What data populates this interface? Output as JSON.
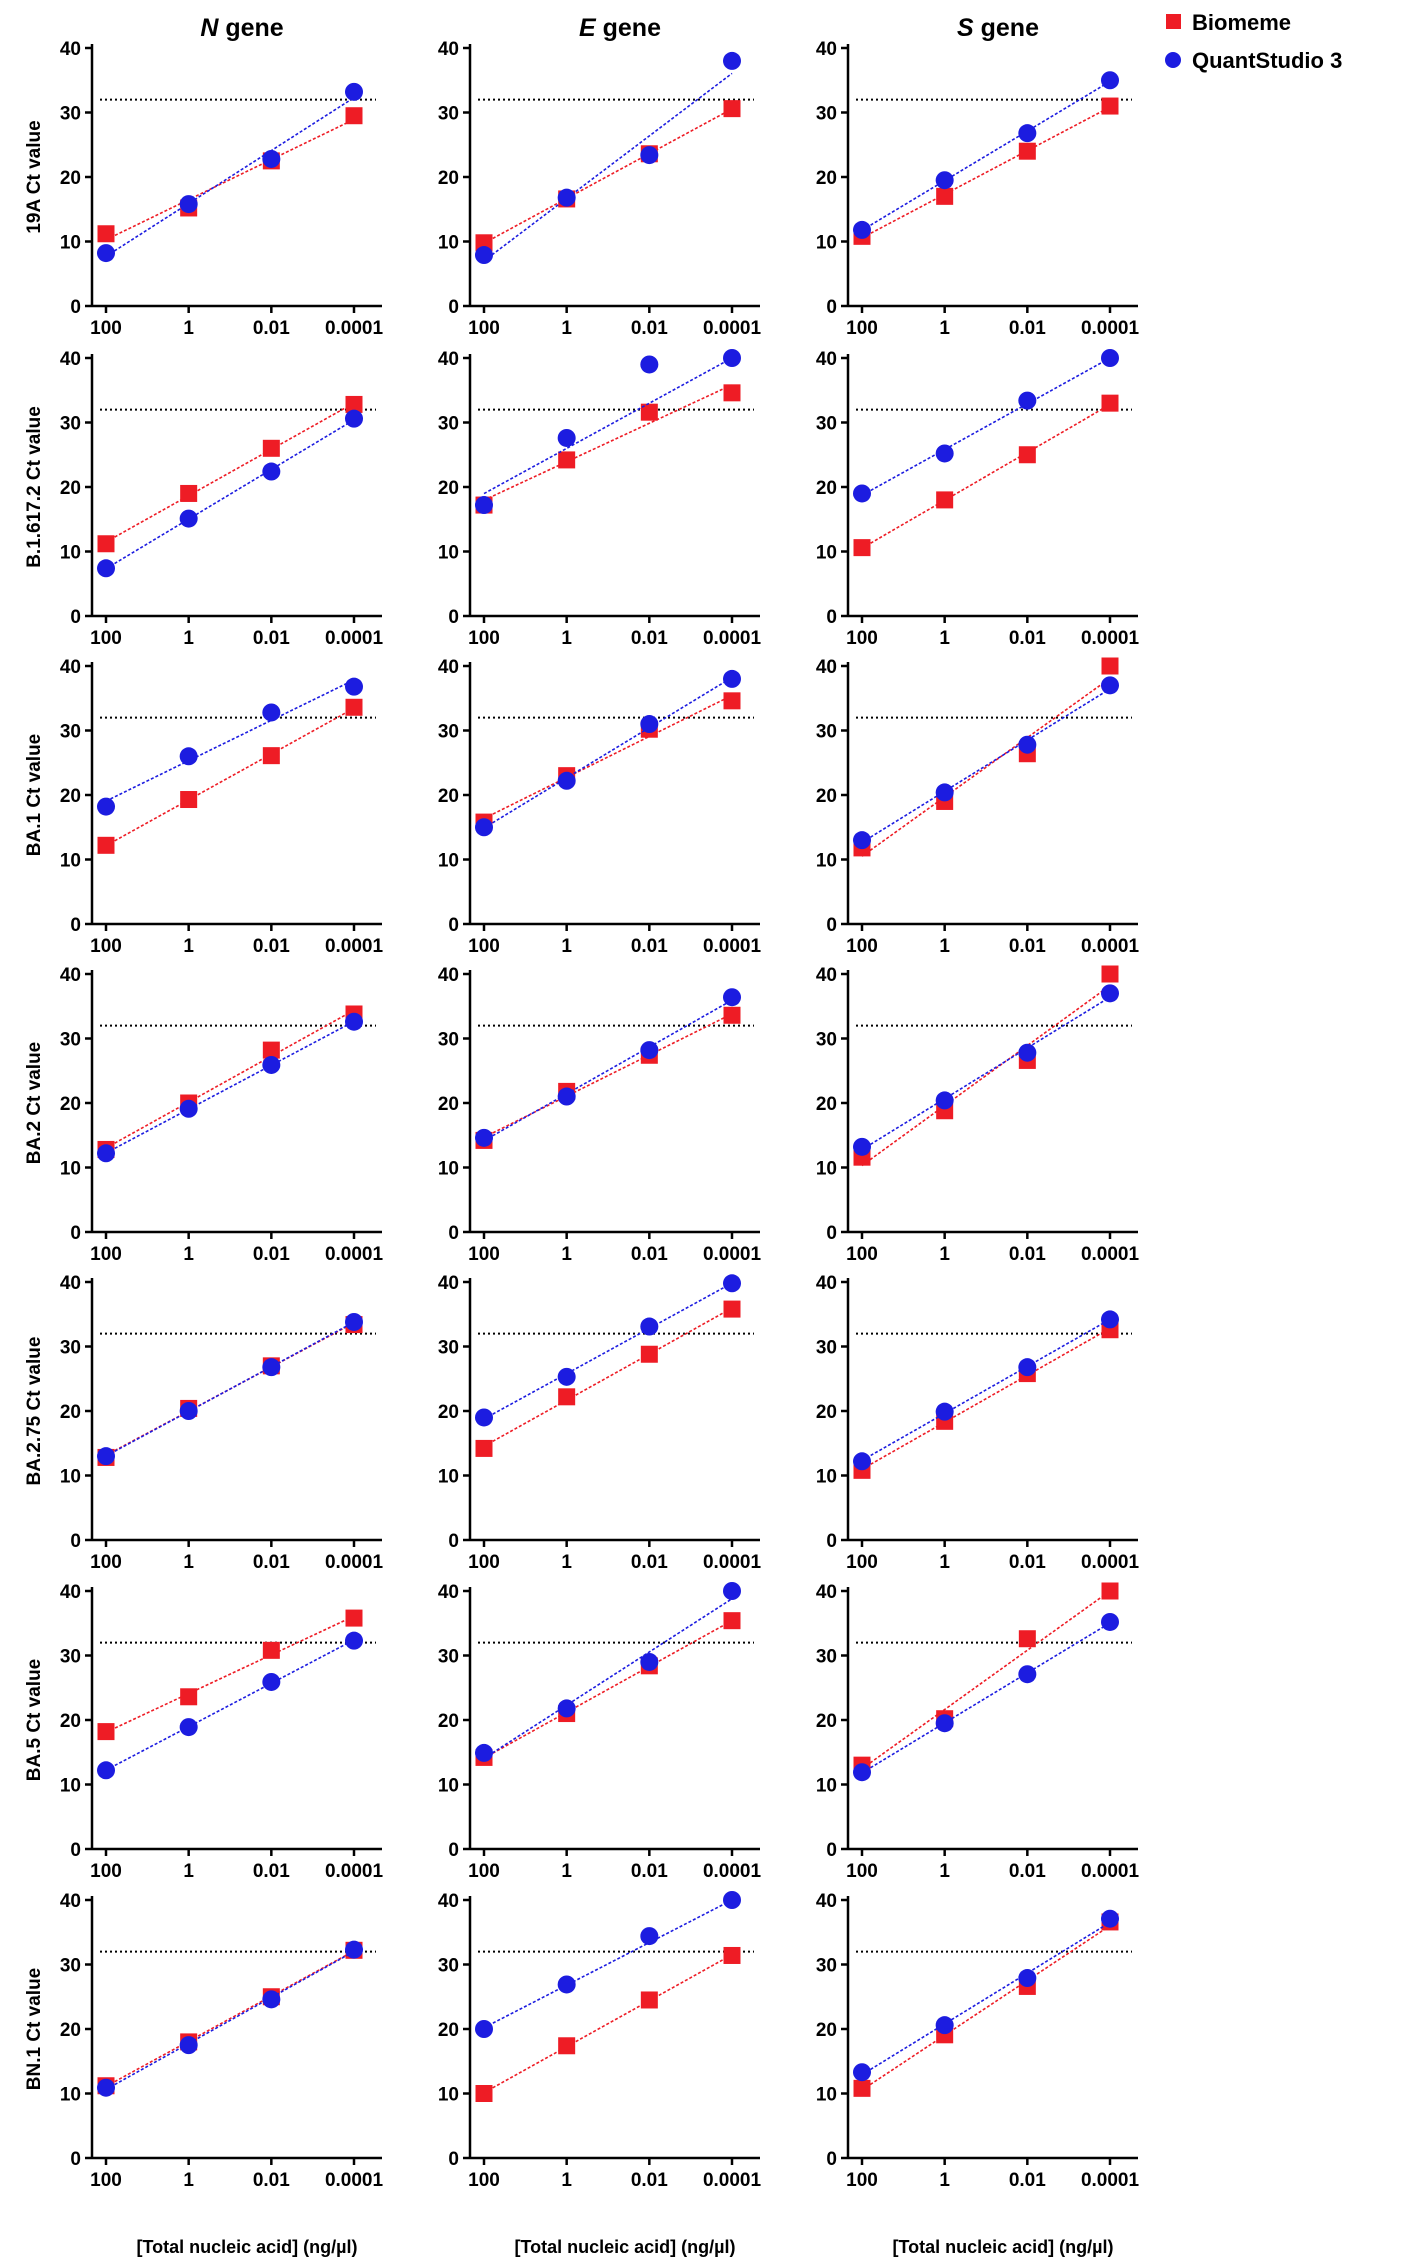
{
  "figure": {
    "column_titles": [
      {
        "italic": "N",
        "rest": " gene"
      },
      {
        "italic": "E",
        "rest": " gene"
      },
      {
        "italic": "S",
        "rest": " gene"
      }
    ],
    "row_labels": [
      "19A Ct value",
      "B.1.617.2 Ct value",
      "BA.1 Ct value",
      "BA.2 Ct value",
      "BA.2.75 Ct value",
      "BA.5 Ct value",
      "BN.1 Ct value"
    ],
    "x_axis_title": "[Total nucleic acid] (ng/µl)",
    "legend": [
      {
        "label": "Biomeme",
        "color": "#ee1c25",
        "marker": "square"
      },
      {
        "label": "QuantStudio 3",
        "color": "#1c1ce0",
        "marker": "circle"
      }
    ],
    "colors": {
      "biomeme": "#ee1c25",
      "quantstudio": "#1c1ce0",
      "threshold": "#000000"
    }
  },
  "chart_data": [
    {
      "type": "scatter",
      "row": "19A",
      "gene": "N gene",
      "x": [
        "100",
        "1",
        "0.01",
        "0.0001"
      ],
      "yticks": [
        0,
        10,
        20,
        30,
        40
      ],
      "ylim": [
        0,
        40
      ],
      "threshold": 32,
      "series": [
        {
          "name": "Biomeme",
          "values": [
            11.2,
            15.2,
            22.5,
            29.5
          ]
        },
        {
          "name": "QuantStudio 3",
          "values": [
            8.2,
            15.8,
            22.8,
            33.2
          ]
        }
      ]
    },
    {
      "type": "scatter",
      "row": "19A",
      "gene": "E gene",
      "x": [
        "100",
        "1",
        "0.01",
        "0.0001"
      ],
      "yticks": [
        0,
        10,
        20,
        30,
        40
      ],
      "ylim": [
        0,
        40
      ],
      "threshold": 32,
      "series": [
        {
          "name": "Biomeme",
          "values": [
            9.8,
            16.6,
            23.6,
            30.6
          ]
        },
        {
          "name": "QuantStudio 3",
          "values": [
            7.9,
            16.8,
            23.4,
            38.0
          ]
        }
      ]
    },
    {
      "type": "scatter",
      "row": "19A",
      "gene": "S gene",
      "x": [
        "100",
        "1",
        "0.01",
        "0.0001"
      ],
      "yticks": [
        0,
        10,
        20,
        30,
        40
      ],
      "ylim": [
        0,
        40
      ],
      "threshold": 32,
      "series": [
        {
          "name": "Biomeme",
          "values": [
            10.8,
            17.0,
            24.0,
            31.0
          ]
        },
        {
          "name": "QuantStudio 3",
          "values": [
            11.8,
            19.5,
            26.8,
            35.0
          ]
        }
      ]
    },
    {
      "type": "scatter",
      "row": "B.1.617.2",
      "gene": "N gene",
      "x": [
        "100",
        "1",
        "0.01",
        "0.0001"
      ],
      "yticks": [
        0,
        10,
        20,
        30,
        40
      ],
      "ylim": [
        0,
        40
      ],
      "threshold": 32,
      "series": [
        {
          "name": "Biomeme",
          "values": [
            11.2,
            19.0,
            26.0,
            32.8
          ]
        },
        {
          "name": "QuantStudio 3",
          "values": [
            7.4,
            15.1,
            22.4,
            30.6
          ]
        }
      ]
    },
    {
      "type": "scatter",
      "row": "B.1.617.2",
      "gene": "E gene",
      "x": [
        "100",
        "1",
        "0.01",
        "0.0001"
      ],
      "yticks": [
        0,
        10,
        20,
        30,
        40
      ],
      "ylim": [
        0,
        40
      ],
      "threshold": 32,
      "series": [
        {
          "name": "Biomeme",
          "values": [
            17.2,
            24.2,
            31.6,
            34.6
          ]
        },
        {
          "name": "QuantStudio 3",
          "values": [
            17.2,
            27.6,
            39.0,
            40.0
          ]
        }
      ]
    },
    {
      "type": "scatter",
      "row": "B.1.617.2",
      "gene": "S gene",
      "x": [
        "100",
        "1",
        "0.01",
        "0.0001"
      ],
      "yticks": [
        0,
        10,
        20,
        30,
        40
      ],
      "ylim": [
        0,
        40
      ],
      "threshold": 32,
      "series": [
        {
          "name": "Biomeme",
          "values": [
            10.6,
            18.0,
            25.0,
            33.0
          ]
        },
        {
          "name": "QuantStudio 3",
          "values": [
            19.0,
            25.2,
            33.4,
            40.0
          ]
        }
      ]
    },
    {
      "type": "scatter",
      "row": "BA.1",
      "gene": "N gene",
      "x": [
        "100",
        "1",
        "0.01",
        "0.0001"
      ],
      "yticks": [
        0,
        10,
        20,
        30,
        40
      ],
      "ylim": [
        0,
        40
      ],
      "threshold": 32,
      "series": [
        {
          "name": "Biomeme",
          "values": [
            12.2,
            19.3,
            26.1,
            33.6
          ]
        },
        {
          "name": "QuantStudio 3",
          "values": [
            18.2,
            26.0,
            32.8,
            36.8
          ]
        }
      ]
    },
    {
      "type": "scatter",
      "row": "BA.1",
      "gene": "E gene",
      "x": [
        "100",
        "1",
        "0.01",
        "0.0001"
      ],
      "yticks": [
        0,
        10,
        20,
        30,
        40
      ],
      "ylim": [
        0,
        40
      ],
      "threshold": 32,
      "series": [
        {
          "name": "Biomeme",
          "values": [
            15.8,
            23.0,
            30.2,
            34.6
          ]
        },
        {
          "name": "QuantStudio 3",
          "values": [
            15.0,
            22.2,
            31.0,
            38.0
          ]
        }
      ]
    },
    {
      "type": "scatter",
      "row": "BA.1",
      "gene": "S gene",
      "x": [
        "100",
        "1",
        "0.01",
        "0.0001"
      ],
      "yticks": [
        0,
        10,
        20,
        30,
        40
      ],
      "ylim": [
        0,
        40
      ],
      "threshold": 32,
      "series": [
        {
          "name": "Biomeme",
          "values": [
            11.8,
            19.0,
            26.4,
            40.0
          ]
        },
        {
          "name": "QuantStudio 3",
          "values": [
            13.0,
            20.4,
            27.8,
            37.0
          ]
        }
      ]
    },
    {
      "type": "scatter",
      "row": "BA.2",
      "gene": "N gene",
      "x": [
        "100",
        "1",
        "0.01",
        "0.0001"
      ],
      "yticks": [
        0,
        10,
        20,
        30,
        40
      ],
      "ylim": [
        0,
        40
      ],
      "threshold": 32,
      "series": [
        {
          "name": "Biomeme",
          "values": [
            12.8,
            20.0,
            28.2,
            33.8
          ]
        },
        {
          "name": "QuantStudio 3",
          "values": [
            12.2,
            19.1,
            25.9,
            32.6
          ]
        }
      ]
    },
    {
      "type": "scatter",
      "row": "BA.2",
      "gene": "E gene",
      "x": [
        "100",
        "1",
        "0.01",
        "0.0001"
      ],
      "yticks": [
        0,
        10,
        20,
        30,
        40
      ],
      "ylim": [
        0,
        40
      ],
      "threshold": 32,
      "series": [
        {
          "name": "Biomeme",
          "values": [
            14.2,
            21.8,
            27.4,
            33.6
          ]
        },
        {
          "name": "QuantStudio 3",
          "values": [
            14.6,
            21.0,
            28.2,
            36.4
          ]
        }
      ]
    },
    {
      "type": "scatter",
      "row": "BA.2",
      "gene": "S gene",
      "x": [
        "100",
        "1",
        "0.01",
        "0.0001"
      ],
      "yticks": [
        0,
        10,
        20,
        30,
        40
      ],
      "ylim": [
        0,
        40
      ],
      "threshold": 32,
      "series": [
        {
          "name": "Biomeme",
          "values": [
            11.6,
            18.8,
            26.6,
            40.0
          ]
        },
        {
          "name": "QuantStudio 3",
          "values": [
            13.2,
            20.4,
            27.8,
            37.0
          ]
        }
      ]
    },
    {
      "type": "scatter",
      "row": "BA.2.75",
      "gene": "N gene",
      "x": [
        "100",
        "1",
        "0.01",
        "0.0001"
      ],
      "yticks": [
        0,
        10,
        20,
        30,
        40
      ],
      "ylim": [
        0,
        40
      ],
      "threshold": 32,
      "series": [
        {
          "name": "Biomeme",
          "values": [
            12.8,
            20.4,
            27.0,
            33.4
          ]
        },
        {
          "name": "QuantStudio 3",
          "values": [
            13.0,
            20.0,
            26.8,
            33.8
          ]
        }
      ]
    },
    {
      "type": "scatter",
      "row": "BA.2.75",
      "gene": "E gene",
      "x": [
        "100",
        "1",
        "0.01",
        "0.0001"
      ],
      "yticks": [
        0,
        10,
        20,
        30,
        40
      ],
      "ylim": [
        0,
        40
      ],
      "threshold": 32,
      "series": [
        {
          "name": "Biomeme",
          "values": [
            14.2,
            22.2,
            28.8,
            35.8
          ]
        },
        {
          "name": "QuantStudio 3",
          "values": [
            19.0,
            25.3,
            33.1,
            39.8
          ]
        }
      ]
    },
    {
      "type": "scatter",
      "row": "BA.2.75",
      "gene": "S gene",
      "x": [
        "100",
        "1",
        "0.01",
        "0.0001"
      ],
      "yticks": [
        0,
        10,
        20,
        30,
        40
      ],
      "ylim": [
        0,
        40
      ],
      "threshold": 32,
      "series": [
        {
          "name": "Biomeme",
          "values": [
            10.8,
            18.4,
            25.8,
            32.6
          ]
        },
        {
          "name": "QuantStudio 3",
          "values": [
            12.2,
            19.9,
            26.8,
            34.2
          ]
        }
      ]
    },
    {
      "type": "scatter",
      "row": "BA.5",
      "gene": "N gene",
      "x": [
        "100",
        "1",
        "0.01",
        "0.0001"
      ],
      "yticks": [
        0,
        10,
        20,
        30,
        40
      ],
      "ylim": [
        0,
        40
      ],
      "threshold": 32,
      "series": [
        {
          "name": "Biomeme",
          "values": [
            18.2,
            23.6,
            30.8,
            35.8
          ]
        },
        {
          "name": "QuantStudio 3",
          "values": [
            12.2,
            18.9,
            25.9,
            32.3
          ]
        }
      ]
    },
    {
      "type": "scatter",
      "row": "BA.5",
      "gene": "E gene",
      "x": [
        "100",
        "1",
        "0.01",
        "0.0001"
      ],
      "yticks": [
        0,
        10,
        20,
        30,
        40
      ],
      "ylim": [
        0,
        40
      ],
      "threshold": 32,
      "series": [
        {
          "name": "Biomeme",
          "values": [
            14.2,
            21.0,
            28.4,
            35.4
          ]
        },
        {
          "name": "QuantStudio 3",
          "values": [
            14.9,
            21.8,
            29.0,
            40.0
          ]
        }
      ]
    },
    {
      "type": "scatter",
      "row": "BA.5",
      "gene": "S gene",
      "x": [
        "100",
        "1",
        "0.01",
        "0.0001"
      ],
      "yticks": [
        0,
        10,
        20,
        30,
        40
      ],
      "ylim": [
        0,
        40
      ],
      "threshold": 32,
      "series": [
        {
          "name": "Biomeme",
          "values": [
            13.0,
            20.2,
            32.6,
            40.0
          ]
        },
        {
          "name": "QuantStudio 3",
          "values": [
            11.9,
            19.5,
            27.1,
            35.2
          ]
        }
      ]
    },
    {
      "type": "scatter",
      "row": "BN.1",
      "gene": "N gene",
      "x": [
        "100",
        "1",
        "0.01",
        "0.0001"
      ],
      "yticks": [
        0,
        10,
        20,
        30,
        40
      ],
      "ylim": [
        0,
        40
      ],
      "threshold": 32,
      "series": [
        {
          "name": "Biomeme",
          "values": [
            11.2,
            18.0,
            25.0,
            32.2
          ]
        },
        {
          "name": "QuantStudio 3",
          "values": [
            10.9,
            17.5,
            24.6,
            32.3
          ]
        }
      ]
    },
    {
      "type": "scatter",
      "row": "BN.1",
      "gene": "E gene",
      "x": [
        "100",
        "1",
        "0.01",
        "0.0001"
      ],
      "yticks": [
        0,
        10,
        20,
        30,
        40
      ],
      "ylim": [
        0,
        40
      ],
      "threshold": 32,
      "series": [
        {
          "name": "Biomeme",
          "values": [
            10.0,
            17.4,
            24.5,
            31.4
          ]
        },
        {
          "name": "QuantStudio 3",
          "values": [
            20.0,
            26.9,
            34.4,
            40.0
          ]
        }
      ]
    },
    {
      "type": "scatter",
      "row": "BN.1",
      "gene": "S gene",
      "x": [
        "100",
        "1",
        "0.01",
        "0.0001"
      ],
      "yticks": [
        0,
        10,
        20,
        30,
        40
      ],
      "ylim": [
        0,
        40
      ],
      "threshold": 32,
      "series": [
        {
          "name": "Biomeme",
          "values": [
            10.8,
            19.1,
            26.6,
            36.6
          ]
        },
        {
          "name": "QuantStudio 3",
          "values": [
            13.3,
            20.6,
            27.9,
            37.1
          ]
        }
      ]
    }
  ]
}
